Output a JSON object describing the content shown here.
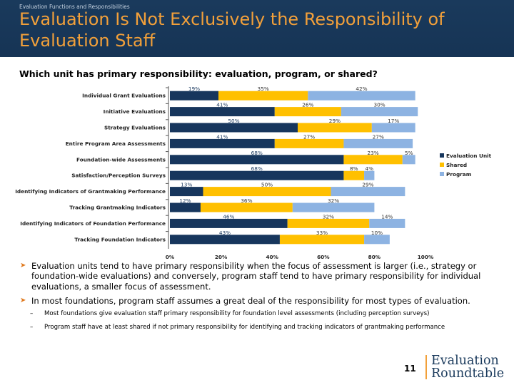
{
  "header": {
    "eyebrow": "Evaluation Functions and Responsibilities",
    "title": "Evaluation Is Not Exclusively the Responsibility of Evaluation Staff"
  },
  "subhead": "Which unit has primary responsibility: evaluation, program, or shared?",
  "chart_data": {
    "type": "bar",
    "orientation": "horizontal",
    "stacked": true,
    "title": "Which unit has primary responsibility: evaluation, program, or shared?",
    "categories": [
      "Individual Grant Evaluations",
      "Initiative Evaluations",
      "Strategy Evaluations",
      "Entire Program Area Assessments",
      "Foundation-wide Assessments",
      "Satisfaction/Perception Surveys",
      "Identifying Indicators of Grantmaking Performance",
      "Tracking Grantmaking Indicators",
      "Identifying Indicators of Foundation Performance",
      "Tracking Foundation Indicators"
    ],
    "series": [
      {
        "name": "Evaluation Unit",
        "color": "#17365d",
        "values": [
          19,
          41,
          50,
          41,
          68,
          68,
          13,
          12,
          46,
          43
        ]
      },
      {
        "name": "Shared",
        "color": "#ffc000",
        "values": [
          35,
          26,
          29,
          27,
          23,
          8,
          50,
          36,
          32,
          33
        ]
      },
      {
        "name": "Program",
        "color": "#8db3e2",
        "values": [
          42,
          30,
          17,
          27,
          5,
          4,
          29,
          32,
          14,
          10
        ]
      }
    ],
    "xlim": [
      0,
      100
    ],
    "xticks": [
      "0%",
      "20%",
      "40%",
      "60%",
      "80%",
      "100%"
    ],
    "legend_position": "right"
  },
  "bullets": [
    "Evaluation units tend to have primary responsibility when the focus of assessment is larger (i.e., strategy or foundation-wide evaluations) and conversely,  program staff tend to have primary responsibility for individual evaluations, a smaller focus of assessment.",
    "In most foundations, program staff assumes a great deal of the responsibility for most types of evaluation."
  ],
  "subbullets": [
    "Most foundations give evaluation staff primary responsibility for foundation level assessments (including perception surveys)",
    "Program staff have at  least shared if not primary responsibility for identifying and tracking indicators of grantmaking performance"
  ],
  "footer": {
    "page_number": "11",
    "logo_line1": "Evaluation",
    "logo_line2": "Roundtable"
  }
}
